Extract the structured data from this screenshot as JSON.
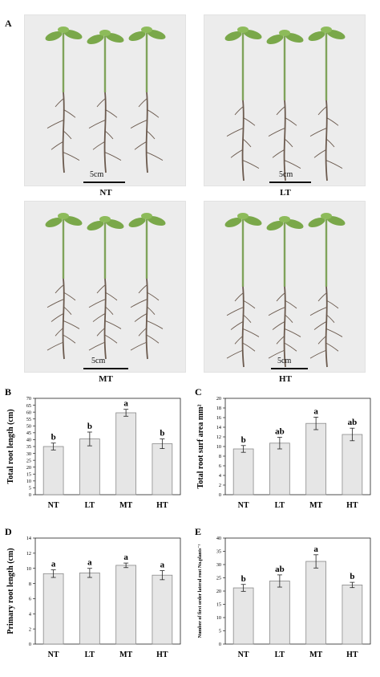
{
  "figure_label": "A",
  "photos": [
    {
      "id": "nt",
      "caption": "NT",
      "scale_label": "5cm"
    },
    {
      "id": "lt",
      "caption": "LT",
      "scale_label": "5cm"
    },
    {
      "id": "mt",
      "caption": "MT",
      "scale_label": "5cm"
    },
    {
      "id": "ht",
      "caption": "HT",
      "scale_label": "5cm"
    }
  ],
  "colors": {
    "bar_fill": "#e6e6e6",
    "bar_stroke": "#8a8a8a",
    "stem": "#7fa35a",
    "leaf": "#7aa84a",
    "root": "#6b5a4e",
    "photo_bg": "#ececec"
  },
  "chart_data": [
    {
      "panel": "B",
      "type": "bar",
      "categories": [
        "NT",
        "LT",
        "MT",
        "HT"
      ],
      "values": [
        35,
        40.5,
        59.5,
        37
      ],
      "errors": [
        2.5,
        5,
        2.5,
        3.5
      ],
      "labels": [
        "b",
        "b",
        "a",
        "b"
      ],
      "ylabel": "Total root length (cm)",
      "ylim": [
        0,
        70
      ],
      "yticks": [
        0,
        5,
        10,
        15,
        20,
        25,
        30,
        35,
        40,
        45,
        50,
        55,
        60,
        65,
        70
      ]
    },
    {
      "panel": "C",
      "type": "bar",
      "categories": [
        "NT",
        "LT",
        "MT",
        "HT"
      ],
      "values": [
        9.5,
        10.7,
        14.8,
        12.5
      ],
      "errors": [
        0.7,
        1.2,
        1.3,
        1.3
      ],
      "labels": [
        "b",
        "ab",
        "a",
        "ab"
      ],
      "ylabel": "Total root surf area mm²",
      "ylim": [
        0,
        20
      ],
      "yticks": [
        0,
        2,
        4,
        6,
        8,
        10,
        12,
        14,
        16,
        18,
        20
      ]
    },
    {
      "panel": "D",
      "type": "bar",
      "categories": [
        "NT",
        "LT",
        "MT",
        "HT"
      ],
      "values": [
        9.3,
        9.4,
        10.4,
        9.1
      ],
      "errors": [
        0.5,
        0.6,
        0.3,
        0.6
      ],
      "labels": [
        "a",
        "a",
        "a",
        "a"
      ],
      "ylabel": "Primary root length (cm)",
      "ylim": [
        0,
        14
      ],
      "yticks": [
        0,
        2,
        4,
        6,
        8,
        10,
        12,
        14
      ]
    },
    {
      "panel": "E",
      "type": "bar",
      "categories": [
        "NT",
        "LT",
        "MT",
        "HT"
      ],
      "values": [
        21.2,
        23.8,
        31.2,
        22.3
      ],
      "errors": [
        1.3,
        2.3,
        2.5,
        1.0
      ],
      "labels": [
        "b",
        "ab",
        "a",
        "b"
      ],
      "ylabel": "Number of first order lateral root No.plants⁻¹",
      "ylim": [
        0,
        40
      ],
      "yticks": [
        0,
        5,
        10,
        15,
        20,
        25,
        30,
        35,
        40
      ]
    }
  ]
}
